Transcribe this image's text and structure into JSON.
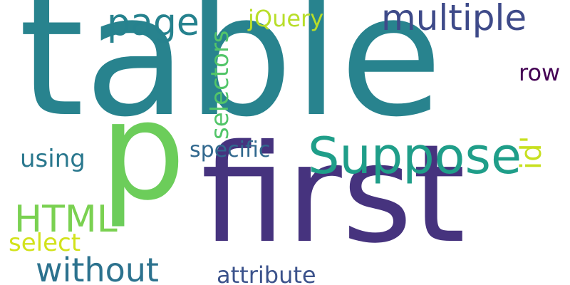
{
  "words": {
    "table": {
      "text": "table",
      "color": "#28838e"
    },
    "first": {
      "text": "first",
      "color": "#46337e"
    },
    "p": {
      "text": "p",
      "color": "#6ccd5a"
    },
    "suppose": {
      "text": "Suppose",
      "color": "#1f9e89"
    },
    "multiple": {
      "text": "multiple",
      "color": "#3e4a89"
    },
    "page": {
      "text": "page",
      "color": "#26828e"
    },
    "jquery": {
      "text": "jQuery",
      "color": "#b8de29"
    },
    "row": {
      "text": "row",
      "color": "#440154"
    },
    "using": {
      "text": "using",
      "color": "#2a788e"
    },
    "specific": {
      "text": "specific",
      "color": "#31688e"
    },
    "html": {
      "text": "HTML",
      "color": "#7ad151"
    },
    "select": {
      "text": "select",
      "color": "#d2e21b"
    },
    "without": {
      "text": "without",
      "color": "#2c728e"
    },
    "attribute": {
      "text": "attribute",
      "color": "#3b528b"
    },
    "selectors": {
      "text": "selectors",
      "color": "#52c569"
    },
    "id": {
      "text": "id'",
      "color": "#c8e020"
    }
  }
}
